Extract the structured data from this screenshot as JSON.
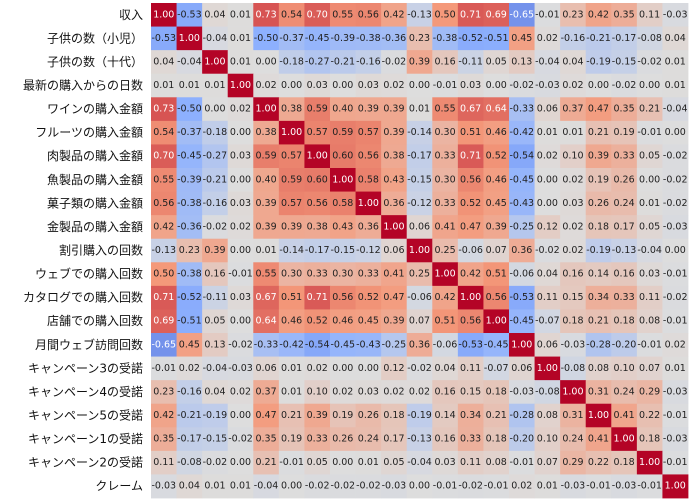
{
  "chart_data": {
    "type": "heatmap",
    "title": "",
    "xlabel": "",
    "ylabel": "",
    "colormap": "coolwarm",
    "vmin": -1,
    "vmax": 1,
    "annotated": true,
    "labels": [
      "収入",
      "子供の数（小児）",
      "子供の数（十代）",
      "最新の購入からの日数",
      "ワインの購入金額",
      "フルーツの購入金額",
      "肉製品の購入金額",
      "魚製品の購入金額",
      "菓子類の購入金額",
      "金製品の購入金額",
      "割引購入の回数",
      "ウェブでの購入回数",
      "カタログでの購入回数",
      "店舗での購入回数",
      "月間ウェブ訪問回数",
      "キャンペーン3の受諾",
      "キャンペーン4の受諾",
      "キャンペーン5の受諾",
      "キャンペーン1の受諾",
      "キャンペーン2の受諾",
      "クレーム"
    ],
    "matrix": [
      [
        1.0,
        -0.53,
        0.04,
        0.01,
        0.73,
        0.54,
        0.7,
        0.55,
        0.56,
        0.42,
        -0.13,
        0.5,
        0.71,
        0.69,
        -0.65,
        -0.01,
        0.23,
        0.42,
        0.35,
        0.11,
        -0.03
      ],
      [
        -0.53,
        1.0,
        -0.04,
        0.01,
        -0.5,
        -0.37,
        -0.45,
        -0.39,
        -0.38,
        -0.36,
        0.23,
        -0.38,
        -0.52,
        -0.51,
        0.45,
        0.02,
        -0.16,
        -0.21,
        -0.17,
        -0.08,
        0.04
      ],
      [
        0.04,
        -0.04,
        1.0,
        0.01,
        0.0,
        -0.18,
        -0.27,
        -0.21,
        -0.16,
        -0.02,
        0.39,
        0.16,
        -0.11,
        0.05,
        0.13,
        -0.04,
        0.04,
        -0.19,
        -0.15,
        -0.02,
        0.01
      ],
      [
        0.01,
        0.01,
        0.01,
        1.0,
        0.02,
        -0.0,
        0.03,
        0.0,
        0.03,
        0.02,
        0.0,
        -0.01,
        0.03,
        0.0,
        -0.02,
        -0.03,
        0.02,
        -0.0,
        -0.02,
        -0.0,
        0.01
      ],
      [
        0.73,
        -0.5,
        0.0,
        0.02,
        1.0,
        0.38,
        0.59,
        0.4,
        0.39,
        0.39,
        0.01,
        0.55,
        0.67,
        0.64,
        -0.33,
        0.06,
        0.37,
        0.47,
        0.35,
        0.21,
        -0.04
      ],
      [
        0.54,
        -0.37,
        -0.18,
        -0.0,
        0.38,
        1.0,
        0.57,
        0.59,
        0.57,
        0.39,
        -0.14,
        0.3,
        0.51,
        0.46,
        -0.42,
        0.01,
        0.01,
        0.21,
        0.19,
        -0.01,
        -0.0
      ],
      [
        0.7,
        -0.45,
        -0.27,
        0.03,
        0.59,
        0.57,
        1.0,
        0.6,
        0.56,
        0.38,
        -0.17,
        0.33,
        0.71,
        0.52,
        -0.54,
        0.02,
        0.1,
        0.39,
        0.33,
        0.05,
        -0.02
      ],
      [
        0.55,
        -0.39,
        -0.21,
        0.0,
        0.4,
        0.59,
        0.6,
        1.0,
        0.58,
        0.43,
        -0.15,
        0.3,
        0.56,
        0.46,
        -0.45,
        0.0,
        0.02,
        0.19,
        0.26,
        0.0,
        -0.02
      ],
      [
        0.56,
        -0.38,
        -0.16,
        0.03,
        0.39,
        0.57,
        0.56,
        0.58,
        1.0,
        0.36,
        -0.12,
        0.33,
        0.52,
        0.45,
        -0.43,
        0.0,
        0.03,
        0.26,
        0.24,
        0.01,
        -0.02
      ],
      [
        0.42,
        -0.36,
        -0.02,
        0.02,
        0.39,
        0.39,
        0.38,
        0.43,
        0.36,
        1.0,
        0.06,
        0.41,
        0.47,
        0.39,
        -0.25,
        0.12,
        0.02,
        0.18,
        0.17,
        0.05,
        -0.03
      ],
      [
        -0.13,
        0.23,
        0.39,
        0.0,
        0.01,
        -0.14,
        -0.17,
        -0.15,
        -0.12,
        0.06,
        1.0,
        0.25,
        -0.06,
        0.07,
        0.36,
        -0.02,
        0.02,
        -0.19,
        -0.13,
        -0.04,
        0.0
      ],
      [
        0.5,
        -0.38,
        0.16,
        -0.01,
        0.55,
        0.3,
        0.33,
        0.3,
        0.33,
        0.41,
        0.25,
        1.0,
        0.42,
        0.51,
        -0.06,
        0.04,
        0.16,
        0.14,
        0.16,
        0.03,
        -0.01
      ],
      [
        0.71,
        -0.52,
        -0.11,
        0.03,
        0.67,
        0.51,
        0.71,
        0.56,
        0.52,
        0.47,
        -0.06,
        0.42,
        1.0,
        0.56,
        -0.53,
        0.11,
        0.15,
        0.34,
        0.33,
        0.11,
        -0.02
      ],
      [
        0.69,
        -0.51,
        0.05,
        0.0,
        0.64,
        0.46,
        0.52,
        0.46,
        0.45,
        0.39,
        0.07,
        0.51,
        0.56,
        1.0,
        -0.45,
        -0.07,
        0.18,
        0.21,
        0.18,
        0.08,
        -0.01
      ],
      [
        -0.65,
        0.45,
        0.13,
        -0.02,
        -0.33,
        -0.42,
        -0.54,
        -0.45,
        -0.43,
        -0.25,
        0.36,
        -0.06,
        -0.53,
        -0.45,
        1.0,
        0.06,
        -0.03,
        -0.28,
        -0.2,
        -0.01,
        0.02
      ],
      [
        -0.01,
        0.02,
        -0.04,
        -0.03,
        0.06,
        0.01,
        0.02,
        0.0,
        0.0,
        0.12,
        -0.02,
        0.04,
        0.11,
        -0.07,
        0.06,
        1.0,
        -0.08,
        0.08,
        0.1,
        0.07,
        0.01
      ],
      [
        0.23,
        -0.16,
        0.04,
        0.02,
        0.37,
        0.01,
        0.1,
        0.02,
        0.03,
        0.02,
        0.02,
        0.16,
        0.15,
        0.18,
        -0.03,
        -0.08,
        1.0,
        0.31,
        0.24,
        0.29,
        -0.03
      ],
      [
        0.42,
        -0.21,
        -0.19,
        -0.0,
        0.47,
        0.21,
        0.39,
        0.19,
        0.26,
        0.18,
        -0.19,
        0.14,
        0.34,
        0.21,
        -0.28,
        0.08,
        0.31,
        1.0,
        0.41,
        0.22,
        -0.01
      ],
      [
        0.35,
        -0.17,
        -0.15,
        -0.02,
        0.35,
        0.19,
        0.33,
        0.26,
        0.24,
        0.17,
        -0.13,
        0.16,
        0.33,
        0.18,
        -0.2,
        0.1,
        0.24,
        0.41,
        1.0,
        0.18,
        -0.03
      ],
      [
        0.11,
        -0.08,
        -0.02,
        -0.0,
        0.21,
        -0.01,
        0.05,
        0.0,
        0.01,
        0.05,
        -0.04,
        0.03,
        0.11,
        0.08,
        -0.01,
        0.07,
        0.29,
        0.22,
        0.18,
        1.0,
        -0.01
      ],
      [
        -0.03,
        0.04,
        0.01,
        0.01,
        -0.04,
        -0.0,
        -0.02,
        -0.02,
        -0.02,
        -0.03,
        0.0,
        -0.01,
        -0.02,
        -0.01,
        0.02,
        0.01,
        -0.03,
        -0.01,
        -0.03,
        -0.01,
        1.0
      ]
    ]
  }
}
